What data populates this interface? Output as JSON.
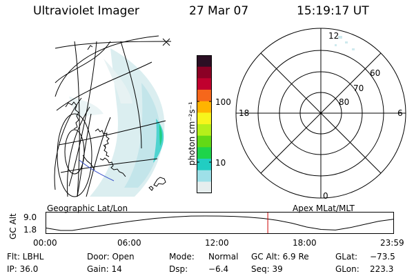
{
  "header": {
    "instrument": "Ultraviolet Imager",
    "date": "27 Mar 07",
    "time": "15:19:17 UT"
  },
  "left_panel": {
    "label": "Geographic Lat/Lon"
  },
  "right_panel": {
    "label": "Apex MLat/MLT",
    "mlt_labels": [
      "12",
      "18",
      "6",
      "0"
    ],
    "mlat_labels": [
      "60",
      "70",
      "80"
    ]
  },
  "colorbar": {
    "label": "photon cm⁻²s⁻¹",
    "ticks": [
      "100",
      "10"
    ],
    "colors": [
      "#2c0f24",
      "#8b0025",
      "#c0002e",
      "#f6671b",
      "#ffb400",
      "#f7f51c",
      "#b6ef1a",
      "#63d915",
      "#1ed44a",
      "#21cdc2",
      "#9ee0e8",
      "#e6eeee"
    ]
  },
  "altitude_plot": {
    "ylabel": "GC Alt",
    "yticks": [
      "9.0",
      "1.8"
    ],
    "xticks": [
      "00:00",
      "06:00",
      "12:00",
      "18:00",
      "23:59"
    ],
    "marker_color": "#cc0000",
    "series": {
      "x_hours": [
        0,
        1,
        1.8,
        3,
        4.5,
        6,
        7.5,
        9,
        10,
        11,
        12,
        13,
        14,
        15,
        16,
        17,
        18,
        19,
        20,
        21,
        22,
        23,
        24
      ],
      "gc_alt_re": [
        3.0,
        1.8,
        1.8,
        3.2,
        5.0,
        6.5,
        7.8,
        8.6,
        8.95,
        9.0,
        8.95,
        8.8,
        8.4,
        7.8,
        6.8,
        5.4,
        3.5,
        2.3,
        2.0,
        3.2,
        4.8,
        6.4,
        7.4
      ]
    },
    "current_hour": 15.32
  },
  "info": {
    "flt": "Flt: LBHL",
    "door": "Door: Open",
    "mode_label": "Mode:",
    "mode_value": "Normal",
    "gc_alt": "GC Alt: 6.9 Re",
    "glat_label": "GLat:",
    "glat_value": "−73.5",
    "ip": "IP: 36.0",
    "gain": "Gain: 14",
    "dsp_label": "Dsp:",
    "dsp_value": "−6.4",
    "seq": "Seq: 39",
    "glon_label": "GLon:",
    "glon_value": "223.3"
  }
}
